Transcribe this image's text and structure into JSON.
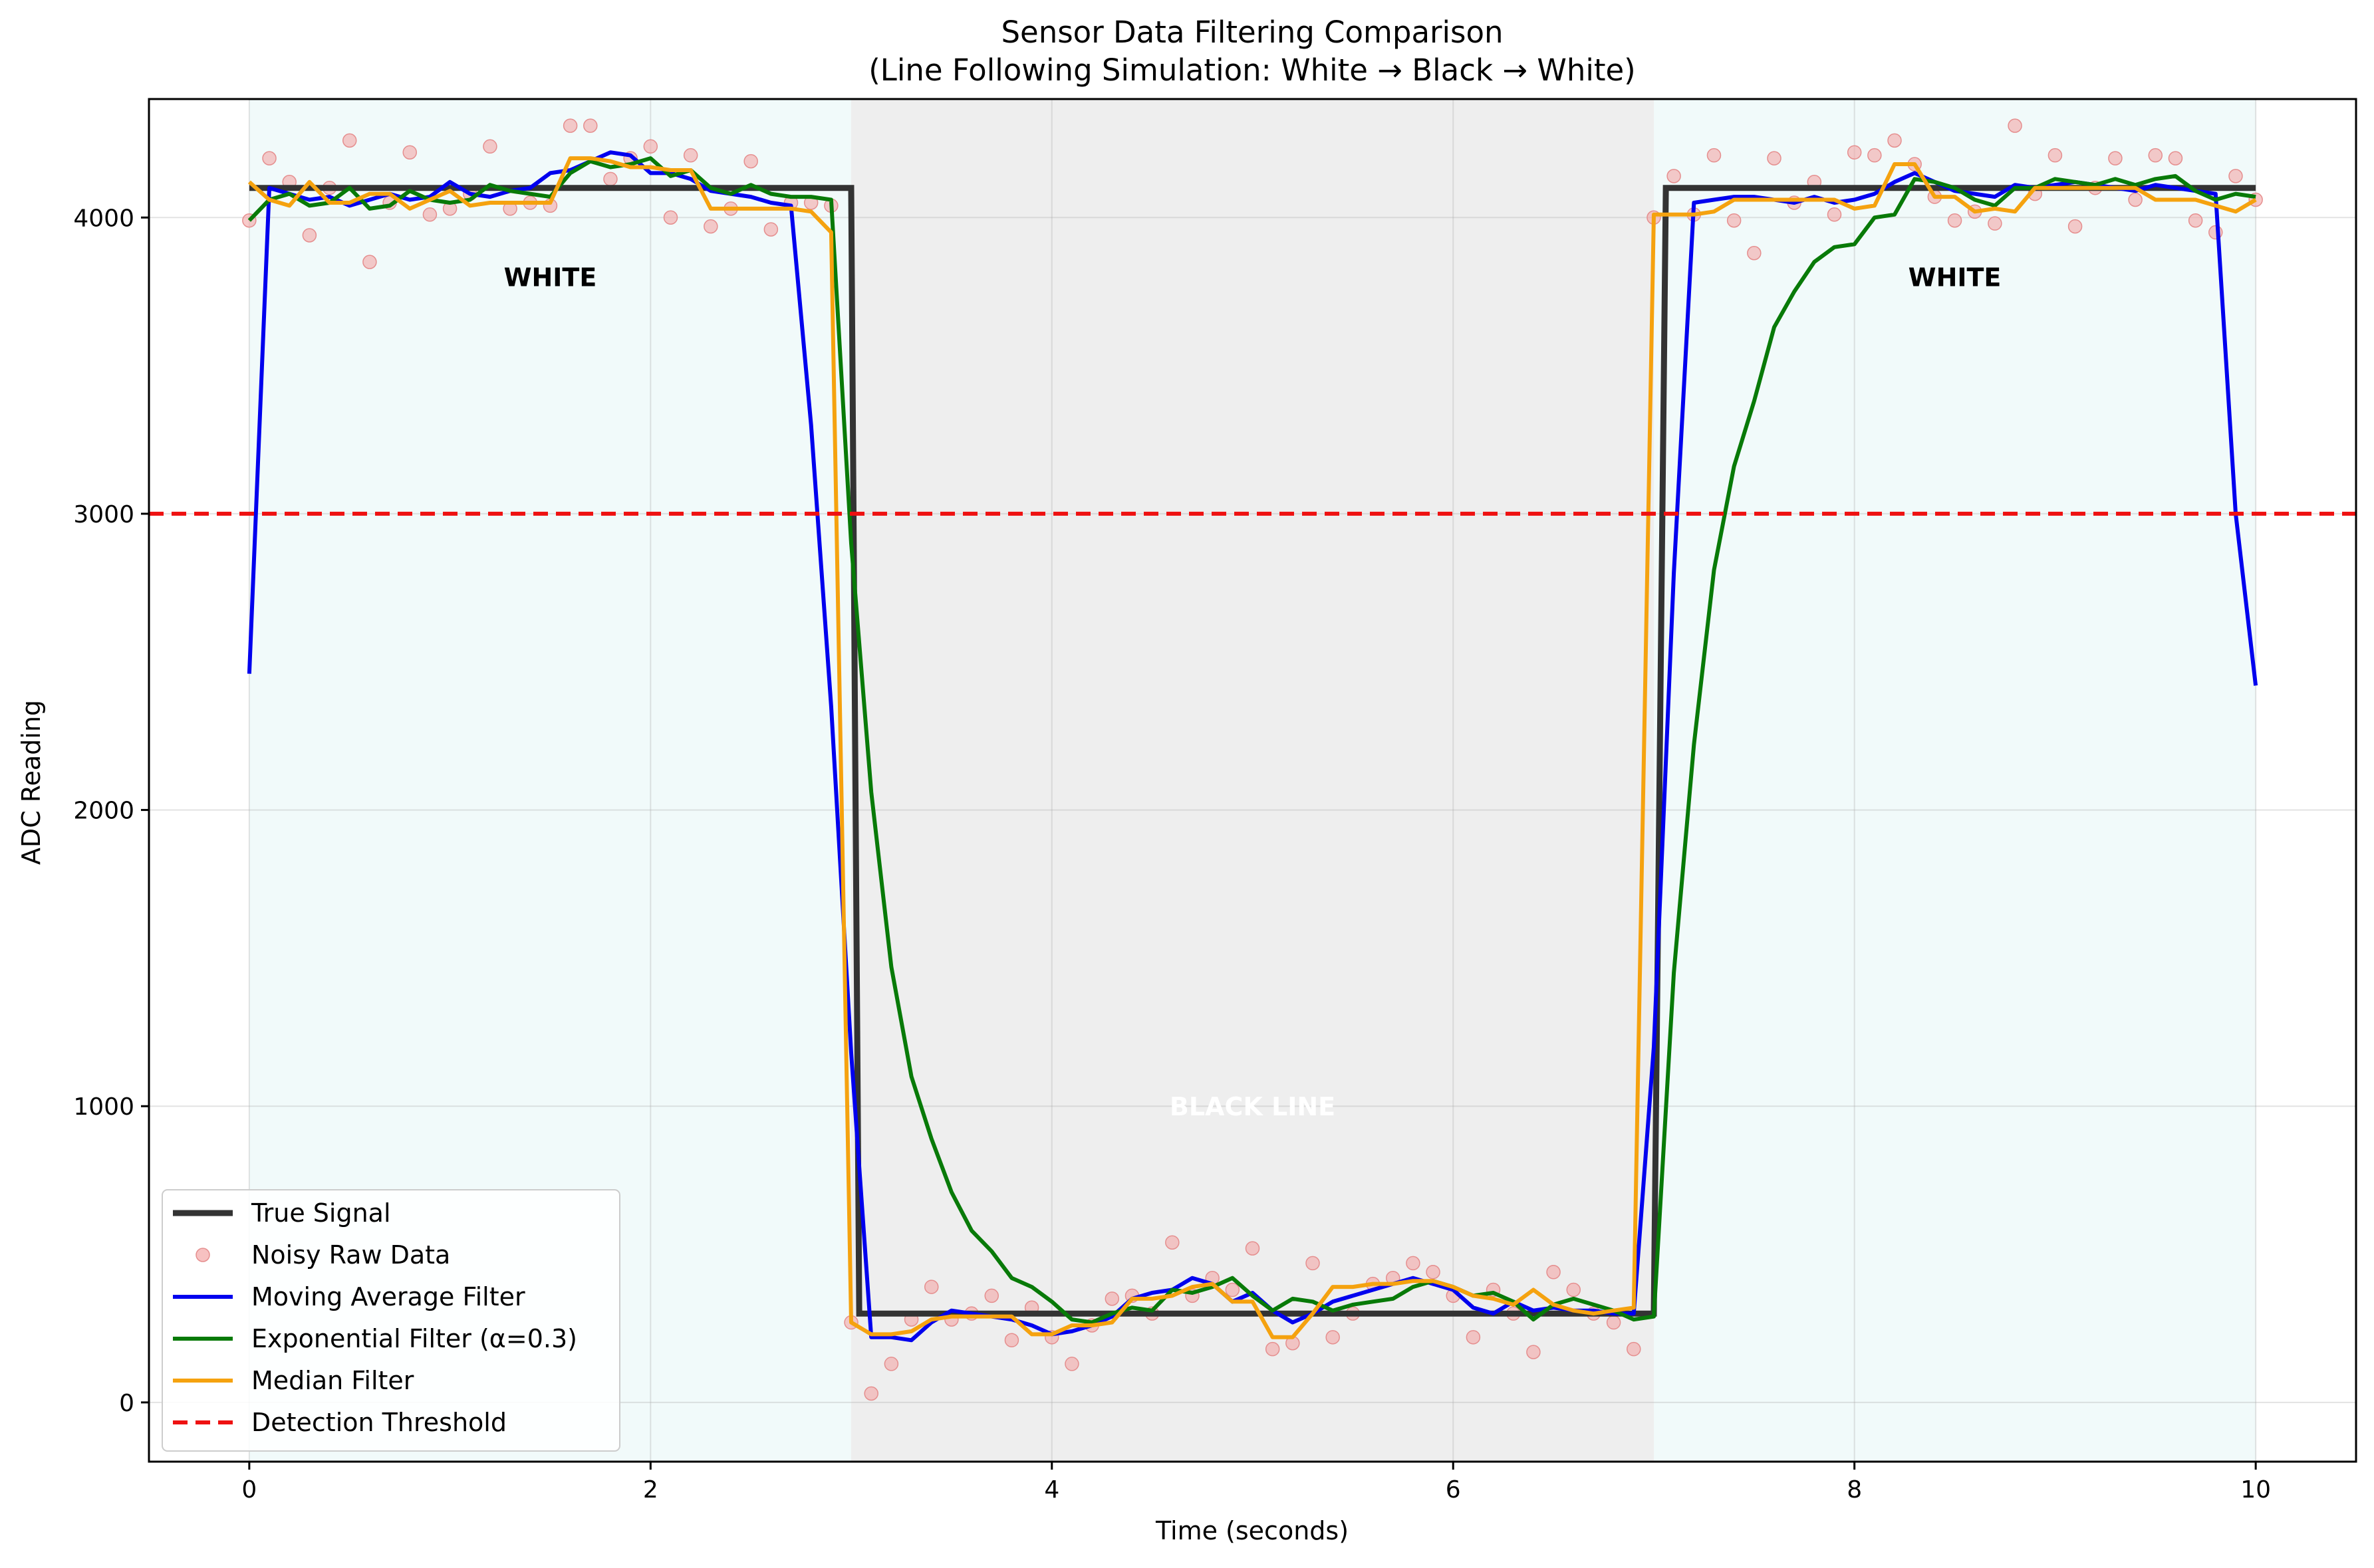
{
  "chart_data": {
    "type": "line",
    "title_line1": "Sensor Data Filtering Comparison",
    "title_line2": "(Line Following Simulation: White → Black → White)",
    "xlabel": "Time (seconds)",
    "ylabel": "ADC Reading",
    "xlim": [
      -0.5,
      10.5
    ],
    "ylim": [
      -200,
      4400
    ],
    "x_ticks": [
      0,
      2,
      4,
      6,
      8,
      10
    ],
    "y_ticks": [
      0,
      1000,
      2000,
      3000,
      4000
    ],
    "grid": true,
    "legend_position": "lower-left",
    "regions": [
      {
        "label": "WHITE",
        "x_start": 0,
        "x_end": 3,
        "label_x": 1.5,
        "label_y": 3800,
        "color": "#e6f5f5",
        "label_color": "#000000"
      },
      {
        "label": "BLACK LINE",
        "x_start": 3,
        "x_end": 7,
        "label_x": 5.0,
        "label_y": 1000,
        "color": "#e0e0e0",
        "label_color": "#ffffff"
      },
      {
        "label": "WHITE",
        "x_start": 7,
        "x_end": 10,
        "label_x": 8.5,
        "label_y": 3800,
        "color": "#e6f5f5",
        "label_color": "#000000"
      }
    ],
    "threshold": {
      "name": "Detection Threshold",
      "value": 3000,
      "color": "#ee1111"
    },
    "true_signal": {
      "name": "True Signal",
      "color": "#333333",
      "x": [
        0,
        3.0,
        3.04,
        7.0,
        7.06,
        10
      ],
      "values": [
        4100,
        4100,
        300,
        300,
        4100,
        4100
      ]
    },
    "noisy": {
      "name": "Noisy Raw Data",
      "color": "#f4a6a6",
      "x": [
        0,
        0.1,
        0.2,
        0.3,
        0.4,
        0.5,
        0.6,
        0.7,
        0.8,
        0.9,
        1.0,
        1.1,
        1.2,
        1.3,
        1.4,
        1.5,
        1.6,
        1.7,
        1.8,
        1.9,
        2.0,
        2.1,
        2.2,
        2.3,
        2.4,
        2.5,
        2.6,
        2.7,
        2.8,
        2.9,
        3.0,
        3.1,
        3.2,
        3.3,
        3.4,
        3.5,
        3.6,
        3.7,
        3.8,
        3.9,
        4.0,
        4.1,
        4.2,
        4.3,
        4.4,
        4.5,
        4.6,
        4.7,
        4.8,
        4.9,
        5.0,
        5.1,
        5.2,
        5.3,
        5.4,
        5.5,
        5.6,
        5.7,
        5.8,
        5.9,
        6.0,
        6.1,
        6.2,
        6.3,
        6.4,
        6.5,
        6.6,
        6.7,
        6.8,
        6.9,
        7.0,
        7.1,
        7.2,
        7.3,
        7.4,
        7.5,
        7.6,
        7.7,
        7.8,
        7.9,
        8.0,
        8.1,
        8.2,
        8.3,
        8.4,
        8.5,
        8.6,
        8.7,
        8.8,
        8.9,
        9.0,
        9.1,
        9.2,
        9.3,
        9.4,
        9.5,
        9.6,
        9.7,
        9.8,
        9.9,
        10.0
      ],
      "values": [
        3990,
        4200,
        4120,
        3940,
        4100,
        4260,
        3850,
        4050,
        4220,
        4010,
        4030,
        4080,
        4240,
        4030,
        4050,
        4040,
        4310,
        4310,
        4130,
        4200,
        4240,
        4000,
        4210,
        3970,
        4030,
        4190,
        3960,
        4050,
        4050,
        4040,
        270,
        30,
        130,
        280,
        390,
        280,
        300,
        360,
        210,
        320,
        220,
        130,
        260,
        350,
        360,
        300,
        540,
        360,
        420,
        380,
        520,
        180,
        200,
        470,
        220,
        300,
        400,
        420,
        470,
        440,
        360,
        220,
        380,
        300,
        170,
        440,
        380,
        300,
        270,
        180,
        4000,
        4140,
        4010,
        4210,
        3990,
        3880,
        4200,
        4050,
        4120,
        4010,
        4220,
        4210,
        4260,
        4180,
        4070,
        3990,
        4020,
        3980,
        4310,
        4080,
        4210,
        3970,
        4100,
        4200,
        4060,
        4210,
        4200,
        3990,
        3950,
        4140,
        4060
      ]
    },
    "series": [
      {
        "name": "Moving Average Filter",
        "color": "#0000ee",
        "x": [
          0,
          0.1,
          0.2,
          0.3,
          0.4,
          0.5,
          0.6,
          0.7,
          0.8,
          0.9,
          1.0,
          1.1,
          1.2,
          1.3,
          1.4,
          1.5,
          1.6,
          1.7,
          1.8,
          1.9,
          2.0,
          2.1,
          2.2,
          2.3,
          2.4,
          2.5,
          2.6,
          2.7,
          2.8,
          2.9,
          3.0,
          3.1,
          3.2,
          3.3,
          3.4,
          3.5,
          3.6,
          3.7,
          3.8,
          3.9,
          4.0,
          4.1,
          4.2,
          4.3,
          4.4,
          4.5,
          4.6,
          4.7,
          4.8,
          4.9,
          5.0,
          5.1,
          5.2,
          5.3,
          5.4,
          5.5,
          5.6,
          5.7,
          5.8,
          5.9,
          6.0,
          6.1,
          6.2,
          6.3,
          6.4,
          6.5,
          6.6,
          6.7,
          6.8,
          6.9,
          7.0,
          7.1,
          7.2,
          7.3,
          7.4,
          7.5,
          7.6,
          7.7,
          7.8,
          7.9,
          8.0,
          8.1,
          8.2,
          8.3,
          8.4,
          8.5,
          8.6,
          8.7,
          8.8,
          8.9,
          9.0,
          9.1,
          9.2,
          9.3,
          9.4,
          9.5,
          9.6,
          9.7,
          9.8,
          9.9,
          10.0
        ],
        "values": [
          2460,
          4100,
          4080,
          4060,
          4070,
          4040,
          4060,
          4080,
          4060,
          4070,
          4120,
          4080,
          4070,
          4090,
          4100,
          4150,
          4160,
          4190,
          4220,
          4210,
          4150,
          4150,
          4130,
          4090,
          4080,
          4070,
          4050,
          4040,
          3300,
          2350,
          1180,
          220,
          220,
          210,
          270,
          310,
          300,
          290,
          280,
          260,
          230,
          240,
          260,
          290,
          350,
          370,
          380,
          420,
          400,
          340,
          370,
          310,
          270,
          300,
          340,
          360,
          380,
          400,
          420,
          400,
          380,
          320,
          300,
          340,
          310,
          320,
          310,
          310,
          300,
          300,
          1200,
          2800,
          4050,
          4060,
          4070,
          4070,
          4060,
          4050,
          4070,
          4050,
          4060,
          4080,
          4120,
          4150,
          4120,
          4090,
          4080,
          4070,
          4110,
          4100,
          4110,
          4120,
          4110,
          4100,
          4090,
          4110,
          4100,
          4090,
          4080,
          3000,
          2420
        ]
      },
      {
        "name": "Exponential Filter (α=0.3)",
        "color": "#087a08",
        "x": [
          0,
          0.1,
          0.2,
          0.3,
          0.4,
          0.5,
          0.6,
          0.7,
          0.8,
          0.9,
          1.0,
          1.1,
          1.2,
          1.3,
          1.4,
          1.5,
          1.6,
          1.7,
          1.8,
          1.9,
          2.0,
          2.1,
          2.2,
          2.3,
          2.4,
          2.5,
          2.6,
          2.7,
          2.8,
          2.9,
          3.0,
          3.1,
          3.2,
          3.3,
          3.4,
          3.5,
          3.6,
          3.7,
          3.8,
          3.9,
          4.0,
          4.1,
          4.2,
          4.3,
          4.4,
          4.5,
          4.6,
          4.7,
          4.8,
          4.9,
          5.0,
          5.1,
          5.2,
          5.3,
          5.4,
          5.5,
          5.6,
          5.7,
          5.8,
          5.9,
          6.0,
          6.1,
          6.2,
          6.3,
          6.4,
          6.5,
          6.6,
          6.7,
          6.8,
          6.9,
          7.0,
          7.1,
          7.2,
          7.3,
          7.4,
          7.5,
          7.6,
          7.7,
          7.8,
          7.9,
          8.0,
          8.1,
          8.2,
          8.3,
          8.4,
          8.5,
          8.6,
          8.7,
          8.8,
          8.9,
          9.0,
          9.1,
          9.2,
          9.3,
          9.4,
          9.5,
          9.6,
          9.7,
          9.8,
          9.9,
          10.0
        ],
        "values": [
          3990,
          4060,
          4080,
          4040,
          4050,
          4100,
          4030,
          4040,
          4090,
          4060,
          4050,
          4060,
          4110,
          4090,
          4080,
          4070,
          4150,
          4190,
          4170,
          4180,
          4200,
          4140,
          4160,
          4100,
          4080,
          4110,
          4080,
          4070,
          4070,
          4060,
          2900,
          2060,
          1470,
          1100,
          890,
          710,
          580,
          510,
          420,
          390,
          340,
          280,
          270,
          300,
          320,
          310,
          380,
          370,
          390,
          420,
          360,
          310,
          350,
          340,
          310,
          330,
          340,
          350,
          390,
          410,
          390,
          360,
          370,
          340,
          280,
          330,
          350,
          330,
          310,
          280,
          290,
          1450,
          2220,
          2810,
          3160,
          3380,
          3630,
          3750,
          3850,
          3900,
          3910,
          4000,
          4010,
          4130,
          4120,
          4100,
          4060,
          4040,
          4100,
          4100,
          4130,
          4120,
          4110,
          4130,
          4110,
          4130,
          4140,
          4090,
          4060,
          4080,
          4070
        ]
      },
      {
        "name": "Median Filter",
        "color": "#f5a20f",
        "x": [
          0,
          0.1,
          0.2,
          0.3,
          0.4,
          0.5,
          0.6,
          0.7,
          0.8,
          0.9,
          1.0,
          1.1,
          1.2,
          1.3,
          1.4,
          1.5,
          1.6,
          1.7,
          1.8,
          1.9,
          2.0,
          2.1,
          2.2,
          2.3,
          2.4,
          2.5,
          2.6,
          2.7,
          2.8,
          2.9,
          3.0,
          3.1,
          3.2,
          3.3,
          3.4,
          3.5,
          3.6,
          3.7,
          3.8,
          3.9,
          4.0,
          4.1,
          4.2,
          4.3,
          4.4,
          4.5,
          4.6,
          4.7,
          4.8,
          4.9,
          5.0,
          5.1,
          5.2,
          5.3,
          5.4,
          5.5,
          5.6,
          5.7,
          5.8,
          5.9,
          6.0,
          6.1,
          6.2,
          6.3,
          6.4,
          6.5,
          6.6,
          6.7,
          6.8,
          6.9,
          7.0,
          7.1,
          7.2,
          7.3,
          7.4,
          7.5,
          7.6,
          7.7,
          7.8,
          7.9,
          8.0,
          8.1,
          8.2,
          8.3,
          8.4,
          8.5,
          8.6,
          8.7,
          8.8,
          8.9,
          9.0,
          9.1,
          9.2,
          9.3,
          9.4,
          9.5,
          9.6,
          9.7,
          9.8,
          9.9,
          10.0
        ],
        "values": [
          4120,
          4060,
          4040,
          4120,
          4050,
          4050,
          4080,
          4080,
          4030,
          4060,
          4090,
          4040,
          4050,
          4050,
          4050,
          4050,
          4200,
          4200,
          4190,
          4170,
          4170,
          4160,
          4160,
          4030,
          4030,
          4030,
          4030,
          4030,
          4020,
          3950,
          270,
          230,
          230,
          240,
          280,
          290,
          290,
          290,
          290,
          230,
          230,
          260,
          260,
          270,
          350,
          350,
          360,
          390,
          400,
          340,
          340,
          220,
          220,
          300,
          390,
          390,
          400,
          400,
          410,
          410,
          390,
          360,
          350,
          330,
          380,
          330,
          310,
          300,
          310,
          320,
          4010,
          4010,
          4010,
          4020,
          4060,
          4060,
          4060,
          4060,
          4060,
          4060,
          4030,
          4040,
          4180,
          4180,
          4070,
          4070,
          4020,
          4030,
          4020,
          4100,
          4100,
          4100,
          4100,
          4100,
          4100,
          4060,
          4060,
          4060,
          4040,
          4020,
          4060
        ]
      }
    ]
  }
}
